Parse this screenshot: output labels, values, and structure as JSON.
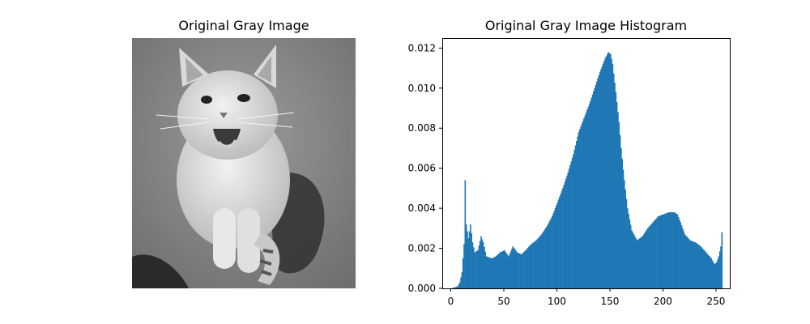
{
  "figure": {
    "left_title": "Original Gray Image",
    "right_title": "Original Gray Image Histogram"
  },
  "image": {
    "description_colors": {
      "floor": "#8c8c8c",
      "cat": "#e6e6e6",
      "shadow": "#3c3c3c"
    }
  },
  "chart_data": {
    "type": "bar",
    "title": "Original Gray Image Histogram",
    "xlabel": "",
    "ylabel": "",
    "xlim": [
      -8,
      263
    ],
    "ylim": [
      0,
      0.0125
    ],
    "xticks": [
      0,
      50,
      100,
      150,
      200,
      250
    ],
    "yticks": [
      "0.000",
      "0.002",
      "0.004",
      "0.006",
      "0.008",
      "0.010",
      "0.012"
    ],
    "bar_color": "#1f77b4",
    "grid": false,
    "anchors": [
      [
        0,
        0
      ],
      [
        3,
        5e-05
      ],
      [
        6,
        0.0001
      ],
      [
        8,
        0.0003
      ],
      [
        10,
        0.0008
      ],
      [
        12,
        0.0022
      ],
      [
        13,
        0.0054
      ],
      [
        14,
        0.0032
      ],
      [
        16,
        0.0025
      ],
      [
        18,
        0.0032
      ],
      [
        20,
        0.0023
      ],
      [
        22,
        0.0018
      ],
      [
        25,
        0.0019
      ],
      [
        28,
        0.0026
      ],
      [
        30,
        0.0023
      ],
      [
        33,
        0.0016
      ],
      [
        38,
        0.0015
      ],
      [
        42,
        0.0016
      ],
      [
        46,
        0.0018
      ],
      [
        50,
        0.0019
      ],
      [
        54,
        0.0016
      ],
      [
        58,
        0.0021
      ],
      [
        62,
        0.0018
      ],
      [
        66,
        0.0017
      ],
      [
        70,
        0.0019
      ],
      [
        75,
        0.0022
      ],
      [
        80,
        0.0024
      ],
      [
        85,
        0.0027
      ],
      [
        90,
        0.0031
      ],
      [
        95,
        0.0036
      ],
      [
        100,
        0.0043
      ],
      [
        105,
        0.005
      ],
      [
        110,
        0.0058
      ],
      [
        115,
        0.0067
      ],
      [
        120,
        0.0078
      ],
      [
        125,
        0.0085
      ],
      [
        130,
        0.0092
      ],
      [
        135,
        0.01
      ],
      [
        140,
        0.0108
      ],
      [
        145,
        0.0115
      ],
      [
        148,
        0.0118
      ],
      [
        150,
        0.0117
      ],
      [
        152,
        0.0112
      ],
      [
        155,
        0.0098
      ],
      [
        158,
        0.0083
      ],
      [
        160,
        0.007
      ],
      [
        163,
        0.0054
      ],
      [
        166,
        0.004
      ],
      [
        170,
        0.0029
      ],
      [
        175,
        0.0024
      ],
      [
        180,
        0.0026
      ],
      [
        185,
        0.003
      ],
      [
        190,
        0.0033
      ],
      [
        195,
        0.0036
      ],
      [
        200,
        0.0037
      ],
      [
        205,
        0.0038
      ],
      [
        210,
        0.0038
      ],
      [
        213,
        0.0037
      ],
      [
        216,
        0.0033
      ],
      [
        220,
        0.0027
      ],
      [
        225,
        0.0024
      ],
      [
        230,
        0.0023
      ],
      [
        235,
        0.0021
      ],
      [
        240,
        0.0018
      ],
      [
        245,
        0.0015
      ],
      [
        248,
        0.0012
      ],
      [
        250,
        0.0013
      ],
      [
        252,
        0.0016
      ],
      [
        254,
        0.0021
      ],
      [
        255,
        0.0028
      ]
    ]
  }
}
